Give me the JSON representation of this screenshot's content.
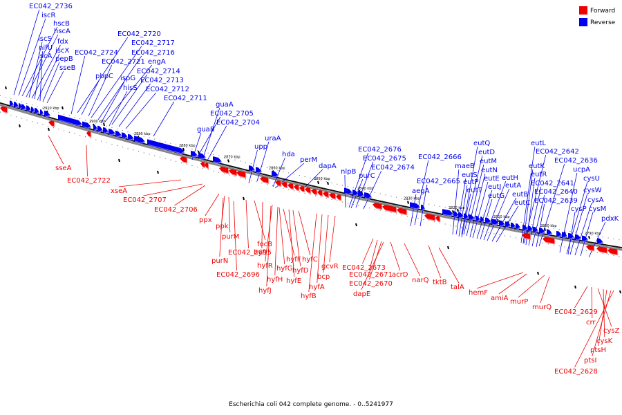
{
  "caption": "Escherichia coli 042 complete genome. - 0..5241977",
  "legend": {
    "forward": "Forward",
    "reverse": "Reverse"
  },
  "colors": {
    "forward": "#ee0000",
    "reverse": "#0000ee",
    "backbone": "#888888"
  },
  "kbp_ticks": [
    "2910 kbp",
    "2900 kbp",
    "2890 kbp",
    "2880 kbp",
    "2870 kbp",
    "2860 kbp",
    "2850 kbp",
    "2840 kbp",
    "2830 kbp",
    "2820 kbp",
    "2810 kbp",
    "2800 kbp",
    "2790 kbp"
  ],
  "reverse_genes": [
    "EC042_2736",
    "iscR",
    "hscB",
    "hscA",
    "iscS",
    "fdx",
    "nifU",
    "iscX",
    "iscA",
    "pepB",
    "sseB",
    "EC042_2720",
    "EC042_2717",
    "EC042_2724",
    "EC042_2716",
    "EC042_2721",
    "engA",
    "pbpC",
    "EC042_2714",
    "ispG",
    "EC042_2713",
    "hisS",
    "EC042_2712",
    "EC042_2711",
    "guaA",
    "EC042_2705",
    "guaB",
    "EC042_2704",
    "uraA",
    "upp",
    "hda",
    "perM",
    "dapA",
    "nlpB",
    "EC042_2676",
    "EC042_2675",
    "purC",
    "EC042_2674",
    "EC042_2666",
    "aegA",
    "EC042_2665",
    "eutQ",
    "maeB",
    "eutD",
    "eutS",
    "eutM",
    "eutP",
    "eutN",
    "eutT",
    "eutE",
    "eutJ",
    "eutG",
    "eutH",
    "eutA",
    "eutB",
    "eutC",
    "eutL",
    "EC042_2642",
    "eutK",
    "eutR",
    "EC042_2636",
    "EC042_2641",
    "ucpA",
    "EC042_2640",
    "cysU",
    "EC042_2639",
    "cysW",
    "cysA",
    "cysP",
    "cysM",
    "pdxK"
  ],
  "forward_genes": [
    "sseA",
    "EC042_2722",
    "xseA",
    "EC042_2707",
    "EC042_2706",
    "ppx",
    "ppk",
    "purM",
    "purN",
    "EC042_2695",
    "focB",
    "hyfI",
    "EC042_2696",
    "hyfR",
    "hyfG",
    "hyfF",
    "hyfH",
    "hyfE",
    "hyfD",
    "hyfC",
    "hyfJ",
    "gcvR",
    "hyfB",
    "hyfA",
    "bcp",
    "EC042_2673",
    "EC042_2671",
    "EC042_2670",
    "dapE",
    "acrD",
    "narQ",
    "tktB",
    "talA",
    "hemF",
    "amiA",
    "murP",
    "murQ",
    "EC042_2629",
    "crr",
    "cysZ",
    "cysK",
    "ptsH",
    "ptsI",
    "EC042_2628"
  ]
}
